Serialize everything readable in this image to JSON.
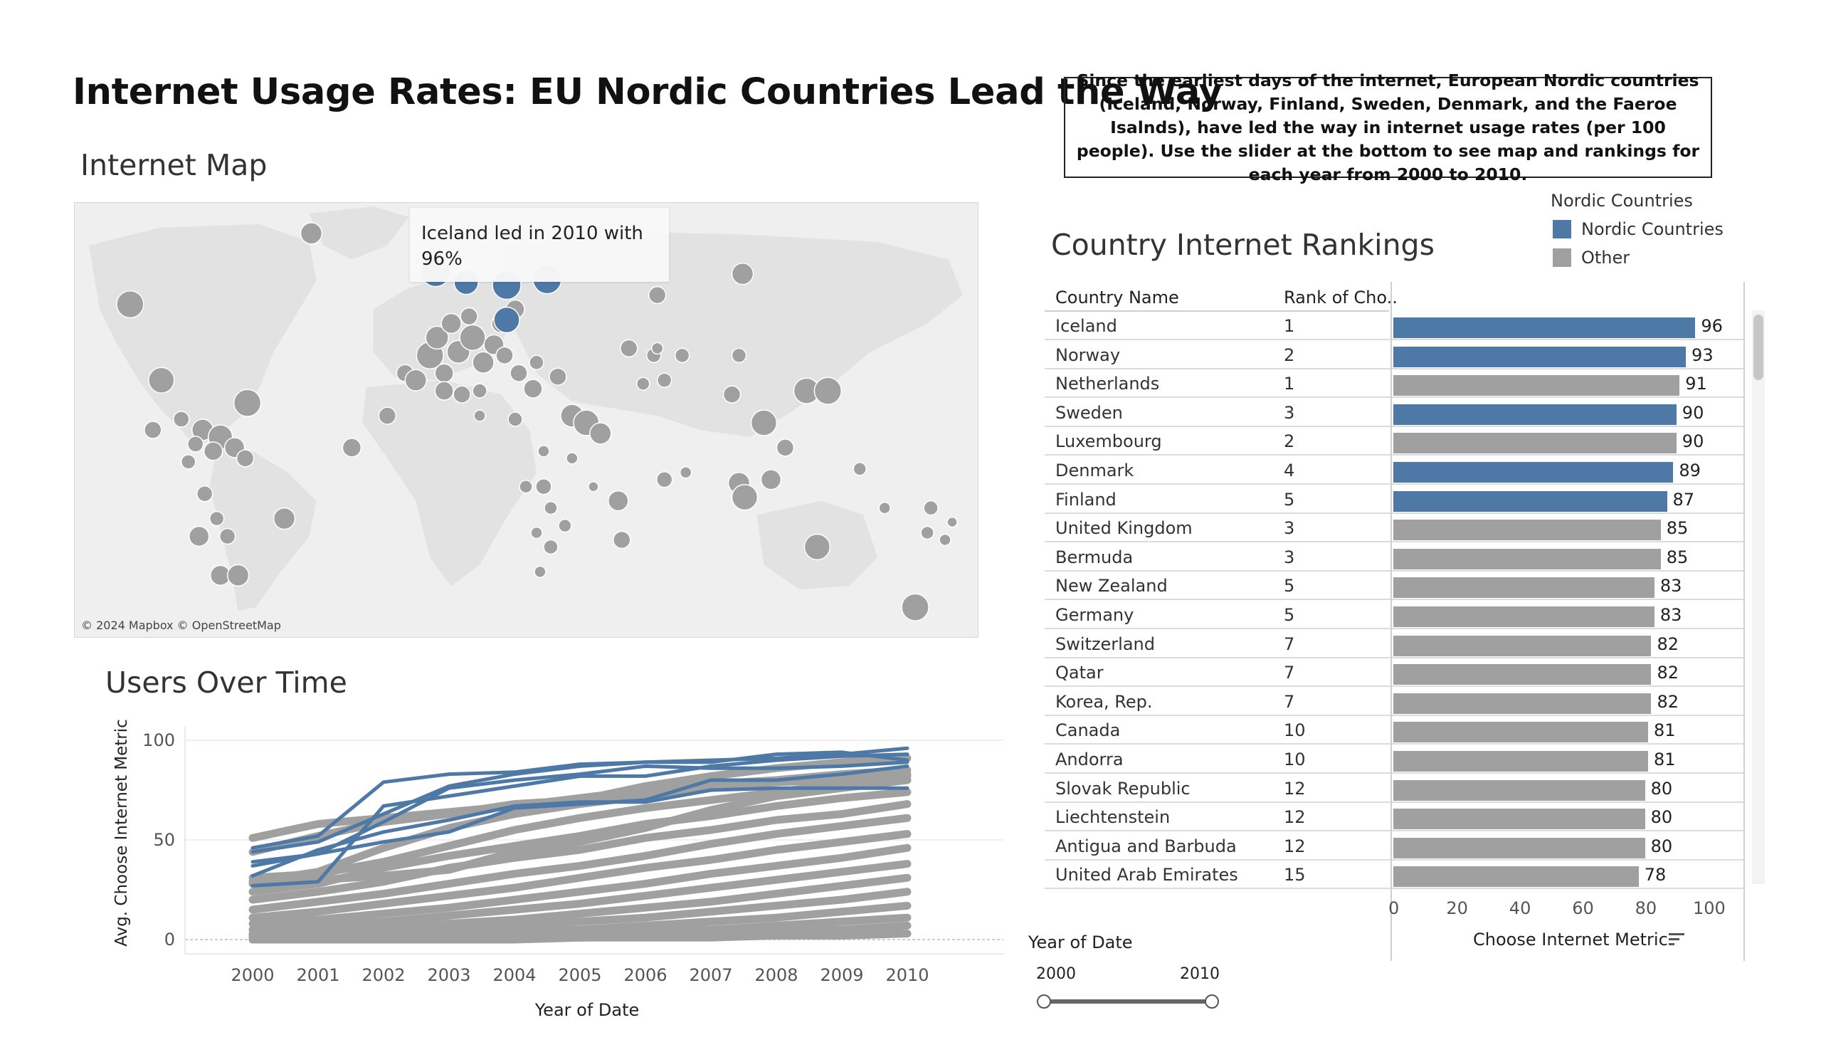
{
  "title": "Internet Usage Rates: EU Nordic Countries Lead the Way",
  "description": "Since the earliest days of the internet, European Nordic countries (Iceland, Norway, Finland, Sweden, Denmark, and the Faeroe Isalnds), have led the way in internet usage rates (per 100 people). Use the slider at the bottom to see map and rankings for each year from 2000 to 2010.",
  "map": {
    "title": "Internet Map",
    "tooltip": "Iceland led in 2010 with 96%",
    "copyright": "© 2024 Mapbox © OpenStreetMap"
  },
  "legend": {
    "title": "Nordic Countries",
    "items": [
      {
        "label": "Nordic Countries",
        "color": "#4e79a7"
      },
      {
        "label": "Other",
        "color": "#a0a0a0"
      }
    ]
  },
  "colors": {
    "nordic": "#4e79a7",
    "other": "#a0a0a0"
  },
  "rankings": {
    "title": "Country Internet Rankings",
    "col_country": "Country Name",
    "col_rank": "Rank of Cho..",
    "axis_label": "Choose Internet Metric",
    "axis_ticks": [
      "0",
      "20",
      "40",
      "60",
      "80",
      "100"
    ],
    "rows": [
      {
        "country": "Iceland",
        "rank": "1",
        "value": 96,
        "nordic": true
      },
      {
        "country": "Norway",
        "rank": "2",
        "value": 93,
        "nordic": true
      },
      {
        "country": "Netherlands",
        "rank": "1",
        "value": 91,
        "nordic": false
      },
      {
        "country": "Sweden",
        "rank": "3",
        "value": 90,
        "nordic": true
      },
      {
        "country": "Luxembourg",
        "rank": "2",
        "value": 90,
        "nordic": false
      },
      {
        "country": "Denmark",
        "rank": "4",
        "value": 89,
        "nordic": true
      },
      {
        "country": "Finland",
        "rank": "5",
        "value": 87,
        "nordic": true
      },
      {
        "country": "United Kingdom",
        "rank": "3",
        "value": 85,
        "nordic": false
      },
      {
        "country": "Bermuda",
        "rank": "3",
        "value": 85,
        "nordic": false
      },
      {
        "country": "New Zealand",
        "rank": "5",
        "value": 83,
        "nordic": false
      },
      {
        "country": "Germany",
        "rank": "5",
        "value": 83,
        "nordic": false
      },
      {
        "country": "Switzerland",
        "rank": "7",
        "value": 82,
        "nordic": false
      },
      {
        "country": "Qatar",
        "rank": "7",
        "value": 82,
        "nordic": false
      },
      {
        "country": "Korea, Rep.",
        "rank": "7",
        "value": 82,
        "nordic": false
      },
      {
        "country": "Canada",
        "rank": "10",
        "value": 81,
        "nordic": false
      },
      {
        "country": "Andorra",
        "rank": "10",
        "value": 81,
        "nordic": false
      },
      {
        "country": "Slovak Republic",
        "rank": "12",
        "value": 80,
        "nordic": false
      },
      {
        "country": "Liechtenstein",
        "rank": "12",
        "value": 80,
        "nordic": false
      },
      {
        "country": "Antigua and Barbuda",
        "rank": "12",
        "value": 80,
        "nordic": false
      },
      {
        "country": "United Arab Emirates",
        "rank": "15",
        "value": 78,
        "nordic": false
      }
    ]
  },
  "slider": {
    "title": "Year of Date",
    "min_label": "2000",
    "max_label": "2010",
    "range": [
      2000,
      2010
    ]
  },
  "chart_data": {
    "type": "line",
    "title": "Users Over Time",
    "xlabel": "Year of Date",
    "ylabel": "Avg. Choose Internet Metric",
    "x": [
      2000,
      2001,
      2002,
      2003,
      2004,
      2005,
      2006,
      2007,
      2008,
      2009,
      2010
    ],
    "xlim": [
      2000,
      2010
    ],
    "ylim": [
      0,
      100
    ],
    "yticks": [
      0,
      50,
      100
    ],
    "grid": true,
    "series": [
      {
        "group": "nordic",
        "values": [
          44,
          49,
          63,
          77,
          83,
          87,
          89,
          90,
          91,
          93,
          96
        ]
      },
      {
        "group": "nordic",
        "values": [
          27,
          29,
          67,
          72,
          77,
          82,
          82,
          87,
          90,
          92,
          93
        ]
      },
      {
        "group": "nordic",
        "values": [
          46,
          52,
          79,
          83,
          84,
          88,
          89,
          89,
          93,
          94,
          90
        ]
      },
      {
        "group": "nordic",
        "values": [
          39,
          43,
          59,
          76,
          80,
          83,
          87,
          86,
          86,
          87,
          89
        ]
      },
      {
        "group": "nordic",
        "values": [
          37,
          43,
          49,
          54,
          66,
          68,
          70,
          80,
          80,
          83,
          87
        ]
      },
      {
        "group": "nordic",
        "values": [
          32,
          45,
          54,
          60,
          67,
          69,
          69,
          75,
          76,
          76,
          76
        ]
      },
      {
        "group": "other",
        "values": [
          51,
          58,
          61,
          64,
          67,
          71,
          75,
          78,
          80,
          83,
          85
        ]
      },
      {
        "group": "other",
        "values": [
          44,
          52,
          59,
          63,
          68,
          70,
          77,
          82,
          86,
          89,
          91
        ]
      },
      {
        "group": "other",
        "values": [
          29,
          34,
          46,
          56,
          63,
          68,
          72,
          76,
          79,
          80,
          83
        ]
      },
      {
        "group": "other",
        "values": [
          31,
          33,
          39,
          47,
          55,
          61,
          66,
          70,
          74,
          78,
          82
        ]
      },
      {
        "group": "other",
        "values": [
          28,
          30,
          32,
          35,
          44,
          49,
          56,
          65,
          72,
          76,
          80
        ]
      },
      {
        "group": "other",
        "values": [
          24,
          28,
          36,
          42,
          47,
          52,
          58,
          62,
          67,
          71,
          74
        ]
      },
      {
        "group": "other",
        "values": [
          20,
          24,
          29,
          36,
          41,
          45,
          51,
          55,
          60,
          63,
          68
        ]
      },
      {
        "group": "other",
        "values": [
          15,
          19,
          23,
          28,
          33,
          37,
          42,
          48,
          53,
          57,
          61
        ]
      },
      {
        "group": "other",
        "values": [
          11,
          14,
          18,
          22,
          26,
          31,
          36,
          40,
          45,
          49,
          53
        ]
      },
      {
        "group": "other",
        "values": [
          8,
          10,
          13,
          16,
          20,
          24,
          28,
          33,
          37,
          41,
          46
        ]
      },
      {
        "group": "other",
        "values": [
          5,
          7,
          9,
          12,
          15,
          18,
          22,
          26,
          30,
          34,
          38
        ]
      },
      {
        "group": "other",
        "values": [
          3,
          4,
          6,
          8,
          10,
          13,
          16,
          19,
          23,
          27,
          31
        ]
      },
      {
        "group": "other",
        "values": [
          2,
          3,
          4,
          5,
          7,
          9,
          11,
          14,
          17,
          20,
          24
        ]
      },
      {
        "group": "other",
        "values": [
          1,
          1,
          2,
          3,
          4,
          5,
          7,
          9,
          11,
          14,
          17
        ]
      },
      {
        "group": "other",
        "values": [
          0,
          1,
          1,
          1,
          2,
          3,
          4,
          5,
          7,
          9,
          11
        ]
      },
      {
        "group": "other",
        "values": [
          0,
          0,
          0,
          1,
          1,
          1,
          2,
          3,
          4,
          5,
          7
        ]
      },
      {
        "group": "other",
        "values": [
          0,
          0,
          0,
          0,
          0,
          1,
          1,
          1,
          2,
          2,
          3
        ]
      }
    ]
  }
}
